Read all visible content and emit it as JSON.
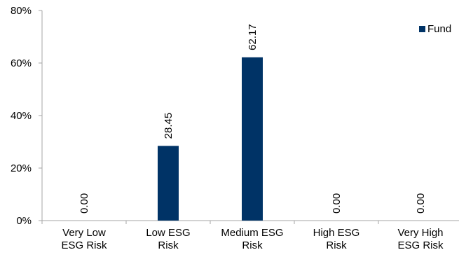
{
  "chart_data": {
    "type": "bar",
    "categories": [
      [
        "Very Low",
        "ESG Risk"
      ],
      [
        "Low ESG",
        "Risk"
      ],
      [
        "Medium ESG",
        "Risk"
      ],
      [
        "High ESG",
        "Risk"
      ],
      [
        "Very High",
        "ESG Risk"
      ]
    ],
    "series": [
      {
        "name": "Fund",
        "values": [
          0.0,
          28.45,
          62.17,
          0.0,
          0.0
        ],
        "labels": [
          "0.00",
          "28.45",
          "62.17",
          "0.00",
          "0.00"
        ],
        "color": "#003366"
      }
    ],
    "yticks": [
      "0%",
      "20%",
      "40%",
      "60%",
      "80%"
    ],
    "ylim": [
      0,
      80
    ],
    "grid": false,
    "legend_position": "top-right"
  }
}
